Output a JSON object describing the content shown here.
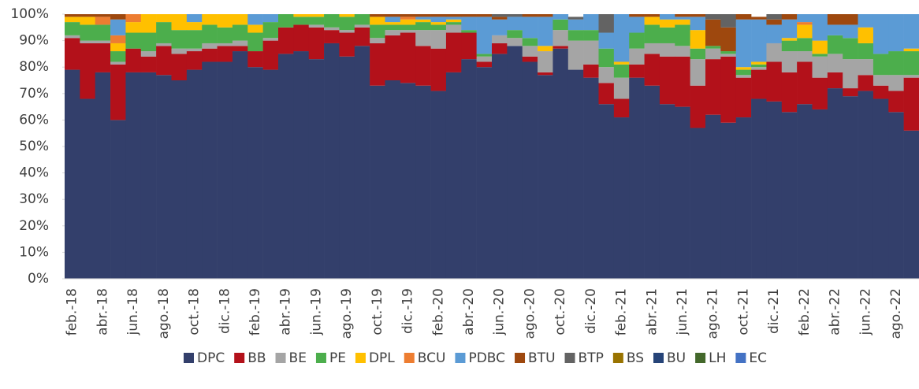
{
  "chart_data": {
    "type": "stacked_bar",
    "categories": [
      "feb.-18",
      null,
      "abr.-18",
      null,
      "jun.-18",
      null,
      "ago.-18",
      null,
      "oct.-18",
      null,
      "dic.-18",
      null,
      "feb.-19",
      null,
      "abr.-19",
      null,
      "jun.-19",
      null,
      "ago.-19",
      null,
      "oct.-19",
      null,
      "dic.-19",
      null,
      "feb.-20",
      null,
      "abr.-20",
      null,
      "jun.-20",
      null,
      "ago.-20",
      null,
      "oct.-20",
      null,
      "dic.-20",
      null,
      "feb.-21",
      null,
      "abr.-21",
      null,
      "jun.-21",
      null,
      "ago.-21",
      null,
      "oct.-21",
      null,
      "dic.-21",
      null,
      "feb.-22",
      null,
      "abr.-22",
      null,
      "jun.-22",
      null,
      "ago.-22",
      null
    ],
    "series": [
      {
        "name": "DPC",
        "color": "#333f6b",
        "values": [
          79,
          68,
          78,
          60,
          78,
          78,
          77,
          75,
          79,
          82,
          82,
          86,
          80,
          79,
          85,
          86,
          83,
          89,
          84,
          88,
          73,
          75,
          74,
          73,
          71,
          78,
          83,
          80,
          85,
          88,
          82,
          77,
          87,
          79,
          76,
          66,
          61,
          76,
          73,
          66,
          65,
          57,
          62,
          59,
          61,
          68,
          67,
          63,
          66,
          64,
          72,
          69,
          71,
          68,
          63,
          56
        ]
      },
      {
        "name": "BB",
        "color": "#b3111a",
        "values": [
          12,
          21,
          11,
          21,
          9,
          6,
          11,
          10,
          7,
          5,
          6,
          2,
          6,
          11,
          10,
          10,
          12,
          5,
          9,
          7,
          16,
          17,
          19,
          15,
          16,
          15,
          10,
          2,
          4,
          0,
          2,
          1,
          1,
          0,
          5,
          8,
          7,
          5,
          12,
          18,
          19,
          16,
          21,
          25,
          15,
          11,
          15,
          15,
          16,
          12,
          6,
          3,
          6,
          5,
          8,
          20
        ]
      },
      {
        "name": "BE",
        "color": "#a5a5a5",
        "values": [
          1,
          1,
          1,
          1,
          0,
          2,
          1,
          2,
          1,
          2,
          1,
          2,
          0,
          1,
          0,
          0,
          1,
          1,
          1,
          1,
          2,
          2,
          1,
          6,
          7,
          3,
          0,
          2,
          3,
          3,
          4,
          8,
          6,
          11,
          9,
          6,
          8,
          6,
          4,
          5,
          4,
          10,
          4,
          1,
          1,
          1,
          7,
          8,
          4,
          8,
          7,
          11,
          6,
          4,
          6,
          1
        ]
      },
      {
        "name": "PE",
        "color": "#4cae4c",
        "values": [
          5,
          6,
          6,
          4,
          6,
          7,
          8,
          7,
          7,
          7,
          6,
          6,
          7,
          6,
          5,
          3,
          3,
          5,
          5,
          4,
          5,
          2,
          2,
          3,
          2,
          1,
          1,
          1,
          0,
          3,
          3,
          0,
          4,
          4,
          4,
          7,
          5,
          6,
          7,
          6,
          8,
          4,
          1,
          1,
          2,
          1,
          0,
          4,
          5,
          1,
          7,
          8,
          6,
          8,
          9,
          9
        ]
      },
      {
        "name": "DPL",
        "color": "#ffc000",
        "values": [
          2,
          3,
          0,
          3,
          4,
          7,
          3,
          6,
          3,
          4,
          5,
          4,
          3,
          0,
          0,
          1,
          1,
          0,
          1,
          0,
          3,
          1,
          2,
          1,
          1,
          1,
          0,
          0,
          0,
          0,
          0,
          2,
          0,
          0,
          0,
          0,
          1,
          0,
          3,
          3,
          2,
          7,
          0,
          0,
          1,
          1,
          0,
          1,
          5,
          5,
          0,
          0,
          6,
          0,
          0,
          1
        ]
      },
      {
        "name": "BCU",
        "color": "#ed7d31",
        "values": [
          0,
          0,
          3,
          3,
          3,
          0,
          0,
          0,
          0,
          0,
          0,
          0,
          0,
          0,
          0,
          0,
          0,
          0,
          0,
          0,
          0,
          0,
          1,
          0,
          0,
          0,
          0,
          0,
          0,
          0,
          0,
          0,
          0,
          0,
          0,
          0,
          0,
          0,
          0,
          0,
          0,
          0,
          0,
          0,
          0,
          0,
          0,
          0,
          1,
          0,
          0,
          0,
          0,
          0,
          0,
          0
        ]
      },
      {
        "name": "PDBC",
        "color": "#5b9bd5",
        "values": [
          0,
          0,
          0,
          6,
          0,
          0,
          0,
          0,
          3,
          0,
          0,
          0,
          4,
          3,
          0,
          0,
          0,
          0,
          0,
          0,
          0,
          2,
          0,
          1,
          2,
          1,
          5,
          14,
          6,
          5,
          8,
          11,
          2,
          4,
          6,
          6,
          18,
          6,
          0,
          2,
          1,
          5,
          0,
          0,
          18,
          16,
          7,
          7,
          3,
          10,
          4,
          5,
          5,
          15,
          14,
          13
        ]
      },
      {
        "name": "BTU",
        "color": "#9e480e",
        "values": [
          1,
          1,
          1,
          2,
          0,
          0,
          0,
          0,
          0,
          0,
          0,
          0,
          0,
          0,
          0,
          0,
          0,
          0,
          0,
          0,
          1,
          1,
          1,
          1,
          1,
          1,
          1,
          1,
          1,
          0,
          1,
          1,
          0,
          0,
          0,
          0,
          0,
          1,
          1,
          0,
          1,
          1,
          10,
          9,
          2,
          1,
          2,
          2,
          0,
          0,
          4,
          4,
          0,
          0,
          0,
          0
        ]
      },
      {
        "name": "BTP",
        "color": "#636363",
        "values": [
          0,
          0,
          0,
          0,
          0,
          0,
          0,
          0,
          0,
          0,
          0,
          0,
          0,
          0,
          0,
          0,
          0,
          0,
          0,
          0,
          0,
          0,
          0,
          0,
          0,
          0,
          0,
          0,
          1,
          1,
          0,
          0,
          0,
          1,
          0,
          7,
          0,
          0,
          0,
          0,
          0,
          0,
          2,
          5,
          0,
          0,
          2,
          0,
          0,
          0,
          0,
          0,
          0,
          0,
          0,
          0
        ]
      },
      {
        "name": "BS",
        "color": "#997300",
        "values": [
          0,
          0,
          0,
          0,
          0,
          0,
          0,
          0,
          0,
          0,
          0,
          0,
          0,
          0,
          0,
          0,
          0,
          0,
          0,
          0,
          0,
          0,
          0,
          0,
          0,
          0,
          0,
          0,
          0,
          0,
          0,
          0,
          0,
          0,
          0,
          0,
          0,
          0,
          0,
          0,
          0,
          0,
          0,
          0,
          0,
          0,
          0,
          0,
          0,
          0,
          0,
          0,
          0,
          0,
          0,
          0
        ]
      },
      {
        "name": "BU",
        "color": "#264478",
        "values": [
          0,
          0,
          0,
          0,
          0,
          0,
          0,
          0,
          0,
          0,
          0,
          0,
          0,
          0,
          0,
          0,
          0,
          0,
          0,
          0,
          0,
          0,
          0,
          0,
          0,
          0,
          0,
          0,
          0,
          0,
          0,
          0,
          0,
          0,
          0,
          0,
          0,
          0,
          0,
          0,
          0,
          0,
          0,
          0,
          0,
          0,
          0,
          0,
          0,
          0,
          0,
          0,
          0,
          0,
          0,
          0
        ]
      },
      {
        "name": "LH",
        "color": "#43682b",
        "values": [
          0,
          0,
          0,
          0,
          0,
          0,
          0,
          0,
          0,
          0,
          0,
          0,
          0,
          0,
          0,
          0,
          0,
          0,
          0,
          0,
          0,
          0,
          0,
          0,
          0,
          0,
          0,
          0,
          0,
          0,
          0,
          0,
          0,
          0,
          0,
          0,
          0,
          0,
          0,
          0,
          0,
          0,
          0,
          0,
          0,
          0,
          0,
          0,
          0,
          0,
          0,
          0,
          0,
          0,
          0,
          0
        ]
      },
      {
        "name": "EC",
        "color": "#4472c4",
        "values": [
          0,
          0,
          0,
          0,
          0,
          0,
          0,
          0,
          0,
          0,
          0,
          0,
          0,
          0,
          0,
          0,
          0,
          0,
          0,
          0,
          0,
          0,
          0,
          0,
          0,
          0,
          0,
          0,
          0,
          0,
          0,
          0,
          0,
          0,
          0,
          0,
          0,
          0,
          0,
          0,
          0,
          0,
          0,
          0,
          0,
          0,
          0,
          0,
          0,
          0,
          0,
          0,
          0,
          0,
          0,
          0
        ]
      }
    ],
    "ylim": [
      0,
      100
    ],
    "yticks": [
      {
        "value": 0,
        "label": "0%"
      },
      {
        "value": 10,
        "label": "10%"
      },
      {
        "value": 20,
        "label": "20%"
      },
      {
        "value": 30,
        "label": "30%"
      },
      {
        "value": 40,
        "label": "40%"
      },
      {
        "value": 50,
        "label": "50%"
      },
      {
        "value": 60,
        "label": "60%"
      },
      {
        "value": 70,
        "label": "70%"
      },
      {
        "value": 80,
        "label": "80%"
      },
      {
        "value": 90,
        "label": "90%"
      },
      {
        "value": 100,
        "label": "100%"
      }
    ],
    "legend": "bottom"
  }
}
